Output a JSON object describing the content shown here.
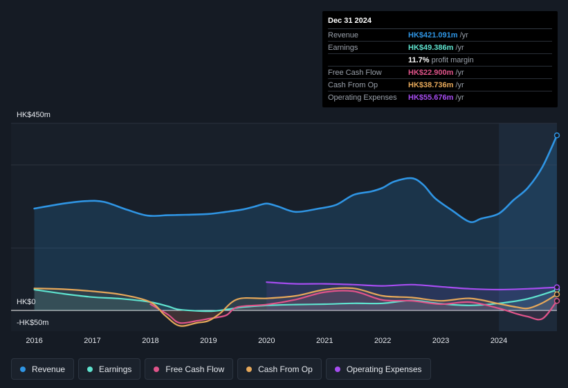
{
  "tooltip": {
    "date": "Dec 31 2024",
    "rows": [
      {
        "label": "Revenue",
        "value": "HK$421.091m",
        "unit": "/yr",
        "color": "#2f95e4"
      },
      {
        "label": "Earnings",
        "value": "HK$49.386m",
        "unit": "/yr",
        "color": "#5fe3cf"
      },
      {
        "label": "",
        "value": "11.7%",
        "unit": "profit margin",
        "color": "#ffffff"
      },
      {
        "label": "Free Cash Flow",
        "value": "HK$22.900m",
        "unit": "/yr",
        "color": "#e0548a"
      },
      {
        "label": "Cash From Op",
        "value": "HK$38.736m",
        "unit": "/yr",
        "color": "#e6a85a"
      },
      {
        "label": "Operating Expenses",
        "value": "HK$55.676m",
        "unit": "/yr",
        "color": "#a64df0"
      }
    ]
  },
  "legend": [
    {
      "label": "Revenue",
      "color": "#2f95e4"
    },
    {
      "label": "Earnings",
      "color": "#5fe3cf"
    },
    {
      "label": "Free Cash Flow",
      "color": "#e0548a"
    },
    {
      "label": "Cash From Op",
      "color": "#e6a85a"
    },
    {
      "label": "Operating Expenses",
      "color": "#a64df0"
    }
  ],
  "chart_data": {
    "type": "line",
    "title": "",
    "y_tick_labels": [
      "HK$450m",
      "HK$0",
      "-HK$50m"
    ],
    "x_tick_labels": [
      "2016",
      "2017",
      "2018",
      "2019",
      "2020",
      "2021",
      "2022",
      "2023",
      "2024"
    ],
    "ylim": [
      -50,
      450
    ],
    "xlim": [
      2015.6,
      2025.0
    ],
    "forecast_start": 2024.0,
    "series": [
      {
        "name": "Revenue",
        "color": "#2f95e4",
        "fill": true,
        "x": [
          2016.0,
          2016.5,
          2016.9,
          2017.2,
          2017.6,
          2017.95,
          2018.3,
          2018.6,
          2019.0,
          2019.3,
          2019.6,
          2019.8,
          2020.0,
          2020.2,
          2020.5,
          2020.9,
          2021.2,
          2021.5,
          2021.8,
          2022.0,
          2022.2,
          2022.5,
          2022.7,
          2022.9,
          2023.2,
          2023.5,
          2023.7,
          2024.0,
          2024.25,
          2024.5,
          2024.75,
          2025.0
        ],
        "y": [
          245,
          257,
          263,
          261,
          242,
          228,
          229,
          230,
          232,
          237,
          243,
          250,
          257,
          250,
          237,
          245,
          254,
          278,
          286,
          295,
          310,
          318,
          302,
          270,
          240,
          213,
          221,
          233,
          265,
          295,
          345,
          421
        ]
      },
      {
        "name": "Earnings",
        "color": "#5fe3cf",
        "fill": false,
        "x": [
          2016.0,
          2016.5,
          2017.0,
          2017.5,
          2018.0,
          2018.3,
          2018.5,
          2019.0,
          2019.3,
          2019.6,
          2020.0,
          2020.5,
          2021.0,
          2021.5,
          2022.0,
          2022.5,
          2023.0,
          2023.5,
          2024.0,
          2024.5,
          2025.0
        ],
        "y": [
          50,
          40,
          32,
          28,
          20,
          10,
          2,
          -2,
          2,
          8,
          12,
          14,
          15,
          17,
          17,
          24,
          16,
          12,
          17,
          28,
          49.386
        ]
      },
      {
        "name": "Free Cash Flow",
        "color": "#e0548a",
        "fill": false,
        "x": [
          2018.0,
          2018.3,
          2018.5,
          2018.8,
          2019.0,
          2019.3,
          2019.5,
          2020.0,
          2020.5,
          2021.0,
          2021.5,
          2022.0,
          2022.5,
          2023.0,
          2023.5,
          2024.0,
          2024.3,
          2024.5,
          2024.75,
          2025.0
        ],
        "y": [
          15,
          -10,
          -30,
          -25,
          -20,
          -12,
          8,
          14,
          26,
          44,
          46,
          25,
          23,
          15,
          20,
          5,
          -8,
          -15,
          -20,
          22.9
        ]
      },
      {
        "name": "Cash From Op",
        "color": "#e6a85a",
        "fill": false,
        "x": [
          2016.0,
          2016.5,
          2017.0,
          2017.5,
          2018.0,
          2018.25,
          2018.5,
          2018.8,
          2019.0,
          2019.2,
          2019.5,
          2020.0,
          2020.5,
          2021.0,
          2021.5,
          2022.0,
          2022.5,
          2023.0,
          2023.5,
          2024.0,
          2024.3,
          2024.5,
          2024.75,
          2025.0
        ],
        "y": [
          53,
          51,
          46,
          38,
          20,
          -12,
          -37,
          -30,
          -25,
          -7,
          27,
          29,
          35,
          50,
          53,
          35,
          31,
          23,
          29,
          16,
          8,
          5,
          18,
          38.736
        ]
      },
      {
        "name": "Operating Expenses",
        "color": "#a64df0",
        "fill": false,
        "x": [
          2020.0,
          2020.5,
          2021.0,
          2021.5,
          2022.0,
          2022.5,
          2023.0,
          2023.5,
          2024.0,
          2024.5,
          2025.0
        ],
        "y": [
          68,
          64,
          64,
          62,
          59,
          62,
          57,
          52,
          50,
          52,
          55.676
        ]
      }
    ]
  }
}
